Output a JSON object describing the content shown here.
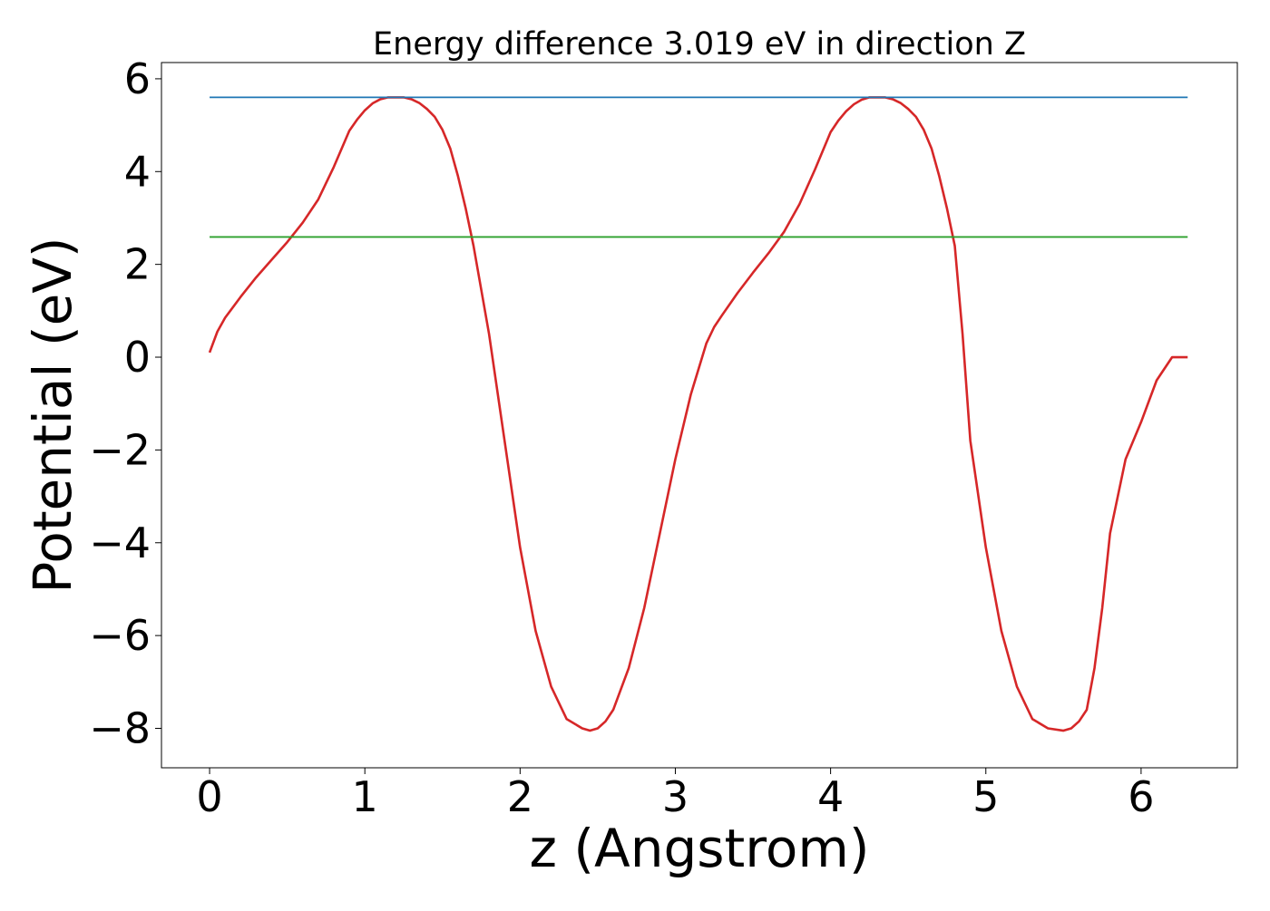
{
  "chart_data": {
    "type": "line",
    "title": "Energy difference 3.019 eV in direction Z",
    "xlabel": "z (Angstrom)",
    "ylabel": "Potential (eV)",
    "xlim": [
      -0.31,
      6.62
    ],
    "ylim": [
      -8.85,
      6.35
    ],
    "xticks": [
      0,
      1,
      2,
      3,
      4,
      5,
      6
    ],
    "yticks": [
      6,
      4,
      2,
      0,
      -2,
      -4,
      -6,
      -8
    ],
    "xtick_labels": [
      "0",
      "1",
      "2",
      "3",
      "4",
      "5",
      "6"
    ],
    "ytick_labels": [
      "6",
      "4",
      "2",
      "0",
      "−2",
      "−4",
      "−6",
      "−8"
    ],
    "grid": false,
    "legend": false,
    "series": [
      {
        "color": "#d62728",
        "x": [
          0.0,
          0.05,
          0.1,
          0.2,
          0.3,
          0.4,
          0.5,
          0.6,
          0.7,
          0.8,
          0.9,
          0.95,
          1.0,
          1.05,
          1.1,
          1.15,
          1.2,
          1.25,
          1.3,
          1.35,
          1.4,
          1.45,
          1.5,
          1.55,
          1.6,
          1.65,
          1.7,
          1.8,
          1.9,
          2.0,
          2.1,
          2.2,
          2.3,
          2.4,
          2.45,
          2.5,
          2.55,
          2.6,
          2.7,
          2.8,
          2.9,
          3.0,
          3.1,
          3.2,
          3.25,
          3.3,
          3.4,
          3.5,
          3.6,
          3.7,
          3.8,
          3.9,
          4.0,
          4.05,
          4.1,
          4.15,
          4.2,
          4.25,
          4.3,
          4.35,
          4.4,
          4.45,
          4.5,
          4.55,
          4.6,
          4.65,
          4.7,
          4.75,
          4.8,
          4.85,
          4.9,
          5.0,
          5.1,
          5.2,
          5.3,
          5.4,
          5.5,
          5.55,
          5.6,
          5.65,
          5.7,
          5.75,
          5.8,
          5.9,
          6.0,
          6.1,
          6.2,
          6.3
        ],
        "y": [
          0.1,
          0.55,
          0.85,
          1.3,
          1.72,
          2.1,
          2.48,
          2.9,
          3.4,
          4.1,
          4.88,
          5.12,
          5.32,
          5.47,
          5.56,
          5.6,
          5.6,
          5.6,
          5.56,
          5.48,
          5.35,
          5.18,
          4.9,
          4.5,
          3.9,
          3.2,
          2.4,
          0.5,
          -1.8,
          -4.1,
          -5.9,
          -7.1,
          -7.8,
          -8.0,
          -8.05,
          -8.0,
          -7.85,
          -7.6,
          -6.7,
          -5.4,
          -3.8,
          -2.2,
          -0.8,
          0.3,
          0.65,
          0.9,
          1.38,
          1.82,
          2.24,
          2.7,
          3.3,
          4.05,
          4.85,
          5.1,
          5.3,
          5.45,
          5.55,
          5.6,
          5.6,
          5.6,
          5.56,
          5.48,
          5.35,
          5.18,
          4.9,
          4.5,
          3.9,
          3.2,
          2.4,
          0.5,
          -1.8,
          -4.1,
          -5.9,
          -7.1,
          -7.8,
          -8.0,
          -8.05,
          -8.0,
          -7.85,
          -7.6,
          -6.7,
          -5.4,
          -3.8,
          -2.2,
          -1.4,
          -0.5,
          0.0,
          0.0
        ],
        "dash": false
      },
      {
        "color": "#1f77b4",
        "x": [
          0.0,
          6.3
        ],
        "y": [
          5.6,
          5.6
        ]
      },
      {
        "color": "#2ca02c",
        "x": [
          0.0,
          6.3
        ],
        "y": [
          2.59,
          2.59
        ]
      }
    ]
  }
}
